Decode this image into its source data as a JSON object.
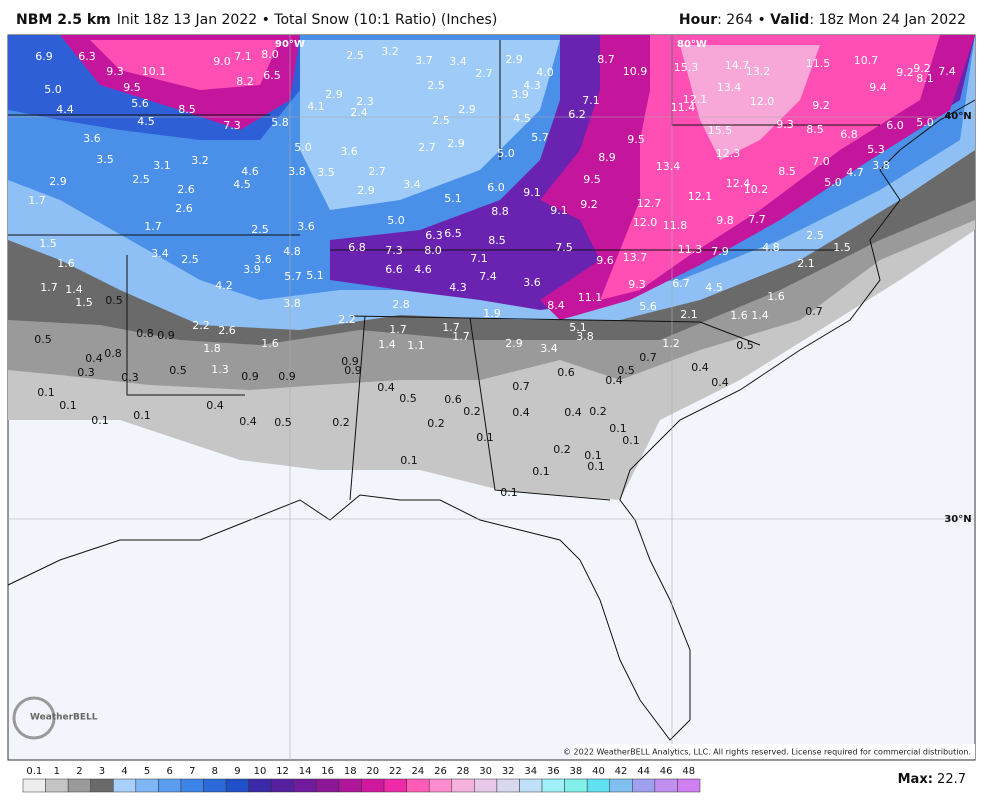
{
  "header": {
    "model": "NBM 2.5 km",
    "description": "Init 18z 13 Jan 2022 • Total Snow (10:1 Ratio) (Inches)",
    "hour_label": "Hour",
    "hour": ": 264 • ",
    "valid_label": "Valid",
    "valid": ": 18z Mon 24 Jan 2022"
  },
  "map": {
    "graticule": [
      "90°W",
      "80°W",
      "40°N",
      "30°N"
    ],
    "labels": [
      "6.9",
      "6.3",
      "9.3",
      "10.1",
      "9.0",
      "7.1",
      "8.0",
      "8.2",
      "6.5",
      "5.0",
      "9.5",
      "5.6",
      "8.5",
      "4.4",
      "4.5",
      "7.3",
      "5.8",
      "4.1",
      "2.9",
      "2.3",
      "2.4",
      "2.5",
      "3.2",
      "3.7",
      "3.4",
      "2.7",
      "2.9",
      "4.0",
      "4.3",
      "3.9",
      "2.5",
      "2.5",
      "2.9",
      "2.7",
      "2.9",
      "4.5",
      "5.7",
      "6.2",
      "7.1",
      "8.7",
      "10.9",
      "15.3",
      "14.7",
      "13.2",
      "13.4",
      "11.5",
      "10.7",
      "9.2",
      "9.2",
      "8.1",
      "7.4",
      "9.4",
      "12.1",
      "11.4",
      "12.0",
      "9.2",
      "15.5",
      "9.3",
      "8.5",
      "6.8",
      "6.0",
      "5.0",
      "3.6",
      "3.5",
      "3.1",
      "3.2",
      "4.6",
      "4.5",
      "5.0",
      "3.6",
      "3.8",
      "3.5",
      "2.7",
      "2.9",
      "3.4",
      "5.0",
      "6.0",
      "9.1",
      "5.1",
      "8.8",
      "9.1",
      "9.2",
      "9.5",
      "8.9",
      "9.5",
      "13.4",
      "12.3",
      "12.4",
      "10.2",
      "12.1",
      "12.7",
      "12.0",
      "11.8",
      "9.8",
      "7.7",
      "8.5",
      "7.0",
      "5.0",
      "4.7",
      "5.3",
      "3.8",
      "2.9",
      "2.5",
      "2.6",
      "2.6",
      "1.7",
      "1.7",
      "2.5",
      "5.0",
      "6.3",
      "6.5",
      "8.5",
      "7.5",
      "9.6",
      "13.7",
      "11.3",
      "7.9",
      "4.8",
      "2.5",
      "1.5",
      "3.6",
      "6.8",
      "7.3",
      "8.0",
      "7.1",
      "6.6",
      "4.6",
      "1.5",
      "1.6",
      "3.4",
      "2.5",
      "3.6",
      "3.9",
      "4.8",
      "5.7",
      "5.1",
      "7.4",
      "4.3",
      "3.6",
      "9.3",
      "6.7",
      "4.5",
      "2.1",
      "1.7",
      "1.4",
      "1.5",
      "0.5",
      "4.2",
      "3.8",
      "2.8",
      "8.4",
      "11.1",
      "5.6",
      "2.1",
      "1.6",
      "1.4",
      "1.6",
      "0.7",
      "0.5",
      "0.8",
      "0.9",
      "2.2",
      "2.6",
      "1.6",
      "2.2",
      "1.7",
      "1.7",
      "1.7",
      "1.9",
      "5.1",
      "3.8",
      "1.4",
      "1.1",
      "2.9",
      "3.4",
      "1.2",
      "0.5",
      "1.8",
      "0.8",
      "0.4",
      "0.3",
      "0.3",
      "0.5",
      "1.3",
      "0.9",
      "0.9",
      "0.9",
      "0.9",
      "0.7",
      "0.5",
      "0.4",
      "0.4",
      "0.4",
      "0.6",
      "0.4",
      "0.7",
      "0.1",
      "0.1",
      "0.1",
      "0.1",
      "0.4",
      "0.5",
      "0.6",
      "0.2",
      "0.4",
      "0.4",
      "0.2",
      "0.4",
      "0.5",
      "0.2",
      "0.2",
      "0.1",
      "0.1",
      "0.1",
      "0.2",
      "0.1",
      "0.1",
      "0.1",
      "0.1",
      "0.1"
    ]
  },
  "logo": "WeatherBELL",
  "copyright": "© 2022 WeatherBELL Analytics, LLC. All rights reserved. License required for commercial distribution.",
  "colorbar": {
    "labels": [
      "0.1",
      "1",
      "2",
      "3",
      "4",
      "5",
      "6",
      "7",
      "8",
      "9",
      "10",
      "12",
      "14",
      "16",
      "18",
      "20",
      "22",
      "24",
      "26",
      "28",
      "30",
      "32",
      "34",
      "36",
      "38",
      "40",
      "42",
      "44",
      "46",
      "48"
    ]
  },
  "max": {
    "label": "Max:",
    "value": " 22.7"
  }
}
